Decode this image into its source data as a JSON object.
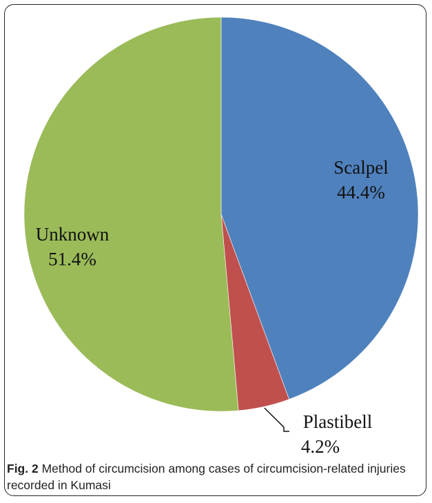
{
  "chart_data": {
    "type": "pie",
    "title": "",
    "start_angle_deg": 0,
    "direction": "clockwise",
    "slices": [
      {
        "label": "Scalpel",
        "value": 44.4,
        "display": "44.4%",
        "color": "#4F81BD"
      },
      {
        "label": "Plastibell",
        "value": 4.2,
        "display": "4.2%",
        "color": "#C0504D"
      },
      {
        "label": "Unknown",
        "value": 51.4,
        "display": "51.4%",
        "color": "#9BBB59"
      }
    ],
    "legend": "none"
  },
  "caption": {
    "fig_label": "Fig. 2",
    "text": " Method of circumcision among cases of circumcision-related injuries recorded in Kumasi"
  }
}
